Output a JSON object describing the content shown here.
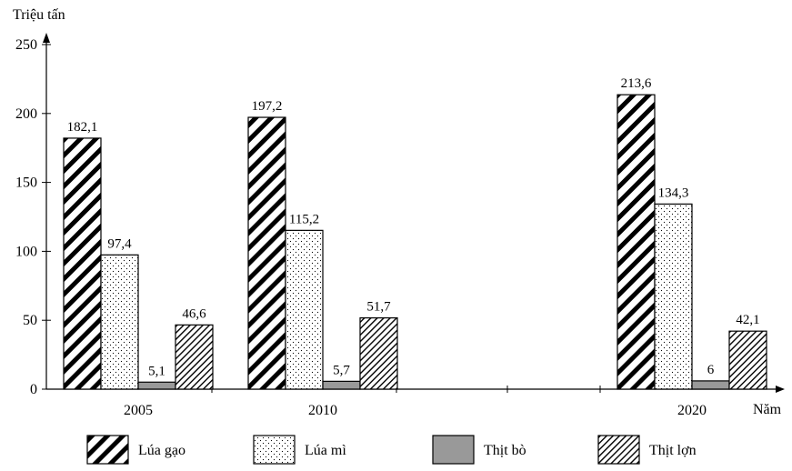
{
  "chart_data": {
    "type": "bar",
    "ylabel": "Triệu tấn",
    "xlabel": "Năm",
    "ylim": [
      0,
      250
    ],
    "yticks": [
      "0",
      "50",
      "100",
      "150",
      "200",
      "250"
    ],
    "categories": [
      "2005",
      "2010",
      "2020"
    ],
    "series": [
      {
        "name": "Lúa gạo",
        "values": [
          182.1,
          197.2,
          213.6
        ],
        "labels": [
          "182,1",
          "197,2",
          "213,6"
        ],
        "pattern": "thick-hatch"
      },
      {
        "name": "Lúa mì",
        "values": [
          97.4,
          115.2,
          134.3
        ],
        "labels": [
          "97,4",
          "115,2",
          "134,3"
        ],
        "pattern": "dots"
      },
      {
        "name": "Thịt bò",
        "values": [
          5.1,
          5.7,
          6
        ],
        "labels": [
          "5,1",
          "5,7",
          "6"
        ],
        "pattern": "solid-gray",
        "color": "#999999"
      },
      {
        "name": "Thịt lợn",
        "values": [
          46.6,
          51.7,
          42.1
        ],
        "labels": [
          "46,6",
          "51,7",
          "42,1"
        ],
        "pattern": "thin-hatch"
      }
    ],
    "grid": false,
    "legend_position": "bottom"
  }
}
